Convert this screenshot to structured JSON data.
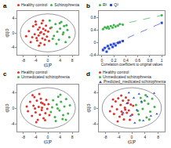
{
  "chart_data": [
    {
      "type": "scatter",
      "title": "a",
      "x_label": "t[1]P",
      "y_label": "t[1]O",
      "xlim": [
        -10,
        10
      ],
      "xticks": [
        -8,
        -4,
        0,
        4,
        8
      ],
      "ylim": [
        -6,
        6
      ],
      "yticks": [
        -4,
        0,
        4
      ],
      "ellipse": [
        9,
        5.2
      ],
      "grid": false,
      "series": [
        {
          "name": "Healthy control",
          "color": "#e0322c",
          "marker": "circle",
          "x": [
            -6.2,
            -5.1,
            -4.8,
            -4.3,
            -3.9,
            -3.5,
            -3.2,
            -3.0,
            -2.7,
            -2.4,
            -2.2,
            -2.0,
            -1.8,
            -1.5,
            -1.3,
            -1.1,
            -0.8,
            -0.6,
            -0.3,
            0.1,
            0.4,
            -5.6,
            -4.0,
            -2.9,
            -1.6,
            -0.9,
            -3.7,
            -2.5,
            0.8,
            -7.1
          ],
          "values": [
            0.5,
            -1.2,
            1.8,
            -0.4,
            2.3,
            -2.1,
            0.9,
            -0.7,
            1.5,
            -2.8,
            0.2,
            2.6,
            -1.5,
            1.1,
            -0.3,
            -3.2,
            0.7,
            2.0,
            -1.0,
            0.4,
            -2.2,
            -2.5,
            3.1,
            -3.5,
            3.4,
            -1.9,
            -1.4,
            0.0,
            1.3,
            -0.9
          ]
        },
        {
          "name": "Schizophrenia",
          "color": "#3db24a",
          "marker": "circle",
          "x": [
            1.2,
            2.0,
            2.5,
            3.1,
            3.6,
            4.0,
            4.4,
            4.9,
            5.3,
            5.8,
            6.4,
            7.0,
            2.8,
            3.9,
            1.6,
            5.1,
            6.1,
            0.6
          ],
          "values": [
            1.5,
            -0.8,
            2.4,
            0.3,
            -1.9,
            1.2,
            3.0,
            -0.4,
            1.9,
            -2.5,
            0.8,
            -1.2,
            -3.0,
            2.7,
            -1.6,
            0.1,
            2.1,
            3.4
          ]
        }
      ]
    },
    {
      "type": "scatter",
      "title": "b",
      "x_label": "Correlation coefficient to original values",
      "xlim": [
        -0.05,
        1.05
      ],
      "xticks": [
        0,
        0.2,
        0.4,
        0.6,
        0.8,
        1
      ],
      "ylim": [
        -0.4,
        1
      ],
      "yticks": [
        -0.4,
        0,
        0.4,
        0.8
      ],
      "grid": false,
      "series": [
        {
          "name": "R²",
          "color": "#3db24a",
          "marker": "circle",
          "line_style": "dashed",
          "x": [
            0.02,
            0.05,
            0.08,
            0.1,
            0.12,
            0.15,
            0.18,
            0.2,
            0.23,
            0.27,
            0.3,
            0.35,
            1
          ],
          "values": [
            0.42,
            0.48,
            0.45,
            0.5,
            0.44,
            0.52,
            0.47,
            0.55,
            0.5,
            0.53,
            0.58,
            0.56,
            0.86
          ],
          "fit_x": [
            0,
            1
          ],
          "fit_y": [
            0.44,
            0.86
          ]
        },
        {
          "name": "Q²",
          "color": "#2f4ad0",
          "marker": "square",
          "line_style": "dashed",
          "x": [
            0.02,
            0.05,
            0.08,
            0.1,
            0.12,
            0.15,
            0.18,
            0.2,
            0.23,
            0.27,
            0.3,
            0.35,
            1
          ],
          "values": [
            -0.25,
            -0.18,
            -0.3,
            -0.12,
            -0.2,
            -0.08,
            -0.15,
            -0.05,
            -0.1,
            -0.02,
            0.0,
            0.04,
            0.62
          ],
          "fit_x": [
            0,
            1
          ],
          "fit_y": [
            -0.22,
            0.62
          ]
        }
      ]
    },
    {
      "type": "scatter",
      "title": "c",
      "x_label": "t[1]P",
      "y_label": "t[1]O",
      "xlim": [
        -10,
        10
      ],
      "xticks": [
        -8,
        -4,
        0,
        4,
        8
      ],
      "ylim": [
        -6,
        6
      ],
      "yticks": [
        -4,
        0,
        4
      ],
      "ellipse": [
        9,
        5.2
      ],
      "grid": false,
      "series": [
        {
          "name": "Healthy control",
          "color": "#e0322c",
          "marker": "circle",
          "x": [
            -6.5,
            -5.8,
            -5.2,
            -4.7,
            -4.4,
            -4.0,
            -3.6,
            -3.3,
            -3.0,
            -2.6,
            -2.3,
            -2.0,
            -1.7,
            -1.4,
            -1.1,
            -0.8,
            -0.5,
            -0.2,
            0.2,
            0.5,
            -5.0,
            -3.8,
            -2.8,
            -1.9,
            -0.9,
            -4.2,
            -2.2,
            -6.9
          ],
          "values": [
            -0.8,
            1.6,
            -2.0,
            0.6,
            2.8,
            -1.1,
            1.9,
            -3.0,
            0.3,
            -1.7,
            2.4,
            -0.5,
            1.2,
            -2.6,
            0.9,
            -1.3,
            2.1,
            -0.2,
            1.0,
            -1.8,
            3.3,
            -3.6,
            3.6,
            0.1,
            -3.1,
            -0.1,
            1.4,
            0.4
          ]
        },
        {
          "name": "Unmedicated schizophrenia",
          "color": "#3db24a",
          "marker": "circle",
          "x": [
            1.0,
            1.7,
            2.3,
            2.9,
            3.4,
            3.8,
            4.3,
            4.8,
            5.4,
            6.0,
            6.6,
            7.2,
            2.6,
            4.1,
            5.0,
            1.4,
            3.2,
            5.9
          ],
          "values": [
            -1.0,
            2.0,
            -2.3,
            0.9,
            2.9,
            -0.6,
            1.6,
            -2.8,
            0.4,
            2.3,
            -1.4,
            0.7,
            -3.3,
            3.4,
            -1.8,
            0.2,
            -0.1,
            -3.0
          ]
        }
      ]
    },
    {
      "type": "scatter",
      "title": "d",
      "x_label": "t[1]P",
      "y_label": "t[1]O",
      "xlim": [
        -10,
        10
      ],
      "xticks": [
        -8,
        -4,
        0,
        4,
        8
      ],
      "ylim": [
        -6,
        6
      ],
      "yticks": [
        -4,
        0,
        4
      ],
      "ellipse": [
        9,
        5.2
      ],
      "grid": false,
      "series": [
        {
          "name": "Healthy control",
          "color": "#e0322c",
          "marker": "circle",
          "x": [
            -6.0,
            -5.4,
            -4.9,
            -4.5,
            -4.1,
            -3.7,
            -3.4,
            -3.1,
            -2.7,
            -2.4,
            -2.1,
            -1.8,
            -1.5,
            -1.2,
            -0.9,
            -0.6,
            -0.3,
            0.1,
            -5.7,
            -4.3,
            -3.2,
            -2.0,
            -1.0,
            -6.6,
            -2.9,
            0.4
          ],
          "values": [
            0.4,
            -1.5,
            1.7,
            -0.3,
            2.5,
            -2.2,
            0.8,
            -0.9,
            1.9,
            -2.9,
            0.1,
            2.7,
            -1.2,
            1.3,
            -0.6,
            -3.0,
            0.9,
            -1.7,
            2.2,
            -3.4,
            3.2,
            -0.4,
            2.0,
            -0.8,
            -1.6,
            0.6
          ]
        },
        {
          "name": "Unmedicated schizophrenia",
          "color": "#3db24a",
          "marker": "circle",
          "x": [
            1.3,
            2.1,
            2.7,
            3.3,
            3.9,
            4.5,
            5.0,
            5.6,
            6.2,
            6.9,
            2.4,
            4.2,
            1.8,
            5.3,
            3.0
          ],
          "values": [
            0.8,
            -1.6,
            2.6,
            -0.2,
            1.9,
            -2.4,
            1.1,
            -0.9,
            2.4,
            0.3,
            -3.1,
            3.3,
            -0.7,
            -2.9,
            1.5
          ]
        },
        {
          "name": "Predicted_medicated schizophrenia",
          "color": "#2f4ad0",
          "marker": "triangle",
          "x": [
            -1.5,
            -0.4,
            0.6,
            1.5,
            2.2,
            3.5,
            4.7,
            5.8,
            -2.6,
            0.9,
            2.9,
            6.8,
            7.6,
            -0.9
          ],
          "values": [
            1.2,
            -2.0,
            2.6,
            -0.5,
            3.6,
            -3.2,
            2.9,
            -2.0,
            -1.2,
            -3.8,
            1.7,
            3.8,
            -1.5,
            3.9
          ]
        }
      ]
    }
  ]
}
